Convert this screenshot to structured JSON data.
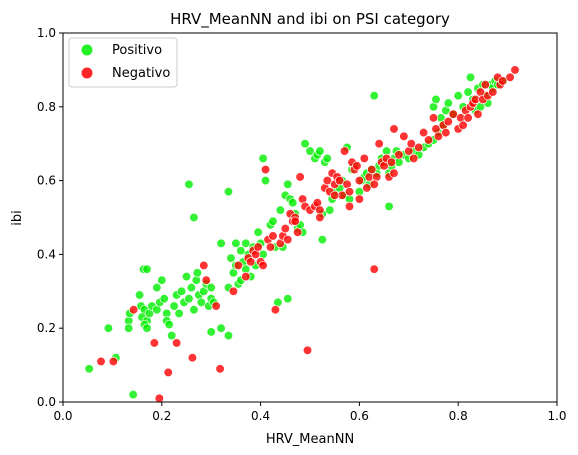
{
  "chart_data": {
    "type": "scatter",
    "title": "HRV_MeanNN and ibi on PSI category",
    "xlabel": "HRV_MeanNN",
    "ylabel": "ibi",
    "xlim": [
      0.0,
      1.0
    ],
    "ylim": [
      0.0,
      1.0
    ],
    "xticks": [
      "0.0",
      "0.2",
      "0.4",
      "0.6",
      "0.8",
      "1.0"
    ],
    "yticks": [
      "0.0",
      "0.2",
      "0.4",
      "0.6",
      "0.8",
      "1.0"
    ],
    "grid": false,
    "legend_position": "top-left",
    "series": [
      {
        "name": "Positivo",
        "color": "#00ee00",
        "points": [
          [
            0.053,
            0.09
          ],
          [
            0.092,
            0.2
          ],
          [
            0.107,
            0.12
          ],
          [
            0.133,
            0.22
          ],
          [
            0.133,
            0.2
          ],
          [
            0.135,
            0.24
          ],
          [
            0.142,
            0.02
          ],
          [
            0.155,
            0.29
          ],
          [
            0.163,
            0.36
          ],
          [
            0.17,
            0.36
          ],
          [
            0.158,
            0.26
          ],
          [
            0.165,
            0.25
          ],
          [
            0.16,
            0.23
          ],
          [
            0.17,
            0.22
          ],
          [
            0.175,
            0.24
          ],
          [
            0.165,
            0.21
          ],
          [
            0.17,
            0.2
          ],
          [
            0.18,
            0.26
          ],
          [
            0.19,
            0.25
          ],
          [
            0.19,
            0.31
          ],
          [
            0.196,
            0.27
          ],
          [
            0.2,
            0.33
          ],
          [
            0.205,
            0.28
          ],
          [
            0.21,
            0.24
          ],
          [
            0.21,
            0.22
          ],
          [
            0.215,
            0.21
          ],
          [
            0.22,
            0.18
          ],
          [
            0.225,
            0.26
          ],
          [
            0.23,
            0.29
          ],
          [
            0.235,
            0.24
          ],
          [
            0.24,
            0.3
          ],
          [
            0.245,
            0.27
          ],
          [
            0.25,
            0.34
          ],
          [
            0.255,
            0.28
          ],
          [
            0.255,
            0.59
          ],
          [
            0.26,
            0.31
          ],
          [
            0.265,
            0.25
          ],
          [
            0.265,
            0.5
          ],
          [
            0.27,
            0.33
          ],
          [
            0.272,
            0.35
          ],
          [
            0.275,
            0.29
          ],
          [
            0.28,
            0.27
          ],
          [
            0.285,
            0.3
          ],
          [
            0.29,
            0.32
          ],
          [
            0.295,
            0.26
          ],
          [
            0.3,
            0.28
          ],
          [
            0.3,
            0.31
          ],
          [
            0.3,
            0.19
          ],
          [
            0.305,
            0.27
          ],
          [
            0.32,
            0.2
          ],
          [
            0.32,
            0.43
          ],
          [
            0.335,
            0.57
          ],
          [
            0.335,
            0.18
          ],
          [
            0.335,
            0.31
          ],
          [
            0.34,
            0.39
          ],
          [
            0.345,
            0.35
          ],
          [
            0.35,
            0.37
          ],
          [
            0.35,
            0.43
          ],
          [
            0.355,
            0.32
          ],
          [
            0.36,
            0.33
          ],
          [
            0.36,
            0.41
          ],
          [
            0.365,
            0.38
          ],
          [
            0.37,
            0.36
          ],
          [
            0.37,
            0.43
          ],
          [
            0.375,
            0.4
          ],
          [
            0.38,
            0.34
          ],
          [
            0.385,
            0.42
          ],
          [
            0.39,
            0.37
          ],
          [
            0.395,
            0.46
          ],
          [
            0.4,
            0.43
          ],
          [
            0.405,
            0.4
          ],
          [
            0.405,
            0.66
          ],
          [
            0.41,
            0.6
          ],
          [
            0.42,
            0.48
          ],
          [
            0.425,
            0.49
          ],
          [
            0.43,
            0.42
          ],
          [
            0.435,
            0.27
          ],
          [
            0.44,
            0.52
          ],
          [
            0.445,
            0.42
          ],
          [
            0.45,
            0.56
          ],
          [
            0.455,
            0.28
          ],
          [
            0.455,
            0.59
          ],
          [
            0.46,
            0.55
          ],
          [
            0.465,
            0.54
          ],
          [
            0.47,
            0.51
          ],
          [
            0.475,
            0.47
          ],
          [
            0.48,
            0.48
          ],
          [
            0.485,
            0.46
          ],
          [
            0.49,
            0.7
          ],
          [
            0.5,
            0.68
          ],
          [
            0.51,
            0.66
          ],
          [
            0.515,
            0.67
          ],
          [
            0.52,
            0.68
          ],
          [
            0.525,
            0.51
          ],
          [
            0.525,
            0.44
          ],
          [
            0.53,
            0.65
          ],
          [
            0.535,
            0.66
          ],
          [
            0.54,
            0.52
          ],
          [
            0.545,
            0.55
          ],
          [
            0.55,
            0.57
          ],
          [
            0.56,
            0.58
          ],
          [
            0.565,
            0.6
          ],
          [
            0.57,
            0.56
          ],
          [
            0.575,
            0.69
          ],
          [
            0.58,
            0.55
          ],
          [
            0.585,
            0.63
          ],
          [
            0.59,
            0.64
          ],
          [
            0.6,
            0.57
          ],
          [
            0.605,
            0.6
          ],
          [
            0.61,
            0.61
          ],
          [
            0.615,
            0.62
          ],
          [
            0.62,
            0.59
          ],
          [
            0.625,
            0.63
          ],
          [
            0.63,
            0.83
          ],
          [
            0.635,
            0.62
          ],
          [
            0.64,
            0.64
          ],
          [
            0.645,
            0.66
          ],
          [
            0.65,
            0.65
          ],
          [
            0.655,
            0.68
          ],
          [
            0.66,
            0.62
          ],
          [
            0.66,
            0.53
          ],
          [
            0.665,
            0.64
          ],
          [
            0.67,
            0.66
          ],
          [
            0.675,
            0.68
          ],
          [
            0.68,
            0.65
          ],
          [
            0.69,
            0.67
          ],
          [
            0.7,
            0.66
          ],
          [
            0.71,
            0.68
          ],
          [
            0.72,
            0.67
          ],
          [
            0.73,
            0.69
          ],
          [
            0.74,
            0.7
          ],
          [
            0.75,
            0.71
          ],
          [
            0.75,
            0.8
          ],
          [
            0.755,
            0.82
          ],
          [
            0.76,
            0.73
          ],
          [
            0.765,
            0.77
          ],
          [
            0.77,
            0.75
          ],
          [
            0.775,
            0.79
          ],
          [
            0.78,
            0.81
          ],
          [
            0.79,
            0.78
          ],
          [
            0.8,
            0.83
          ],
          [
            0.81,
            0.8
          ],
          [
            0.82,
            0.84
          ],
          [
            0.825,
            0.88
          ],
          [
            0.83,
            0.82
          ],
          [
            0.835,
            0.79
          ],
          [
            0.84,
            0.85
          ],
          [
            0.845,
            0.8
          ],
          [
            0.85,
            0.86
          ],
          [
            0.855,
            0.83
          ],
          [
            0.86,
            0.81
          ],
          [
            0.865,
            0.86
          ],
          [
            0.87,
            0.85
          ],
          [
            0.875,
            0.87
          ],
          [
            0.88,
            0.86
          ],
          [
            0.89,
            0.87
          ]
        ]
      },
      {
        "name": "Negativo",
        "color": "#ff0000",
        "points": [
          [
            0.077,
            0.11
          ],
          [
            0.102,
            0.11
          ],
          [
            0.143,
            0.25
          ],
          [
            0.185,
            0.16
          ],
          [
            0.195,
            0.01
          ],
          [
            0.213,
            0.08
          ],
          [
            0.23,
            0.16
          ],
          [
            0.262,
            0.12
          ],
          [
            0.285,
            0.37
          ],
          [
            0.29,
            0.33
          ],
          [
            0.31,
            0.26
          ],
          [
            0.318,
            0.09
          ],
          [
            0.345,
            0.3
          ],
          [
            0.355,
            0.37
          ],
          [
            0.37,
            0.34
          ],
          [
            0.375,
            0.39
          ],
          [
            0.38,
            0.38
          ],
          [
            0.385,
            0.41
          ],
          [
            0.39,
            0.4
          ],
          [
            0.395,
            0.42
          ],
          [
            0.4,
            0.38
          ],
          [
            0.405,
            0.37
          ],
          [
            0.41,
            0.63
          ],
          [
            0.415,
            0.44
          ],
          [
            0.42,
            0.42
          ],
          [
            0.425,
            0.45
          ],
          [
            0.43,
            0.25
          ],
          [
            0.44,
            0.43
          ],
          [
            0.445,
            0.45
          ],
          [
            0.45,
            0.47
          ],
          [
            0.455,
            0.44
          ],
          [
            0.46,
            0.51
          ],
          [
            0.465,
            0.49
          ],
          [
            0.47,
            0.5
          ],
          [
            0.475,
            0.46
          ],
          [
            0.48,
            0.61
          ],
          [
            0.485,
            0.55
          ],
          [
            0.49,
            0.53
          ],
          [
            0.495,
            0.14
          ],
          [
            0.5,
            0.52
          ],
          [
            0.51,
            0.53
          ],
          [
            0.515,
            0.54
          ],
          [
            0.52,
            0.52
          ],
          [
            0.53,
            0.58
          ],
          [
            0.535,
            0.6
          ],
          [
            0.54,
            0.57
          ],
          [
            0.545,
            0.62
          ],
          [
            0.55,
            0.59
          ],
          [
            0.555,
            0.61
          ],
          [
            0.56,
            0.6
          ],
          [
            0.565,
            0.56
          ],
          [
            0.57,
            0.68
          ],
          [
            0.575,
            0.59
          ],
          [
            0.58,
            0.57
          ],
          [
            0.585,
            0.65
          ],
          [
            0.59,
            0.63
          ],
          [
            0.595,
            0.64
          ],
          [
            0.6,
            0.6
          ],
          [
            0.61,
            0.66
          ],
          [
            0.615,
            0.58
          ],
          [
            0.62,
            0.61
          ],
          [
            0.625,
            0.63
          ],
          [
            0.63,
            0.36
          ],
          [
            0.635,
            0.61
          ],
          [
            0.64,
            0.7
          ],
          [
            0.645,
            0.65
          ],
          [
            0.65,
            0.64
          ],
          [
            0.655,
            0.66
          ],
          [
            0.66,
            0.61
          ],
          [
            0.665,
            0.65
          ],
          [
            0.67,
            0.74
          ],
          [
            0.68,
            0.67
          ],
          [
            0.69,
            0.72
          ],
          [
            0.7,
            0.68
          ],
          [
            0.705,
            0.7
          ],
          [
            0.71,
            0.66
          ],
          [
            0.72,
            0.69
          ],
          [
            0.73,
            0.73
          ],
          [
            0.74,
            0.71
          ],
          [
            0.75,
            0.77
          ],
          [
            0.755,
            0.74
          ],
          [
            0.76,
            0.72
          ],
          [
            0.77,
            0.75
          ],
          [
            0.775,
            0.73
          ],
          [
            0.78,
            0.76
          ],
          [
            0.79,
            0.78
          ],
          [
            0.8,
            0.74
          ],
          [
            0.805,
            0.77
          ],
          [
            0.81,
            0.75
          ],
          [
            0.815,
            0.79
          ],
          [
            0.82,
            0.77
          ],
          [
            0.825,
            0.8
          ],
          [
            0.83,
            0.81
          ],
          [
            0.835,
            0.82
          ],
          [
            0.84,
            0.78
          ],
          [
            0.845,
            0.84
          ],
          [
            0.85,
            0.82
          ],
          [
            0.855,
            0.86
          ],
          [
            0.86,
            0.83
          ],
          [
            0.87,
            0.84
          ],
          [
            0.88,
            0.88
          ],
          [
            0.885,
            0.86
          ],
          [
            0.89,
            0.87
          ],
          [
            0.905,
            0.88
          ],
          [
            0.915,
            0.9
          ],
          [
            0.6,
            0.55
          ],
          [
            0.58,
            0.53
          ],
          [
            0.63,
            0.59
          ],
          [
            0.67,
            0.62
          ],
          [
            0.47,
            0.49
          ],
          [
            0.52,
            0.5
          ],
          [
            0.55,
            0.56
          ]
        ]
      }
    ]
  }
}
